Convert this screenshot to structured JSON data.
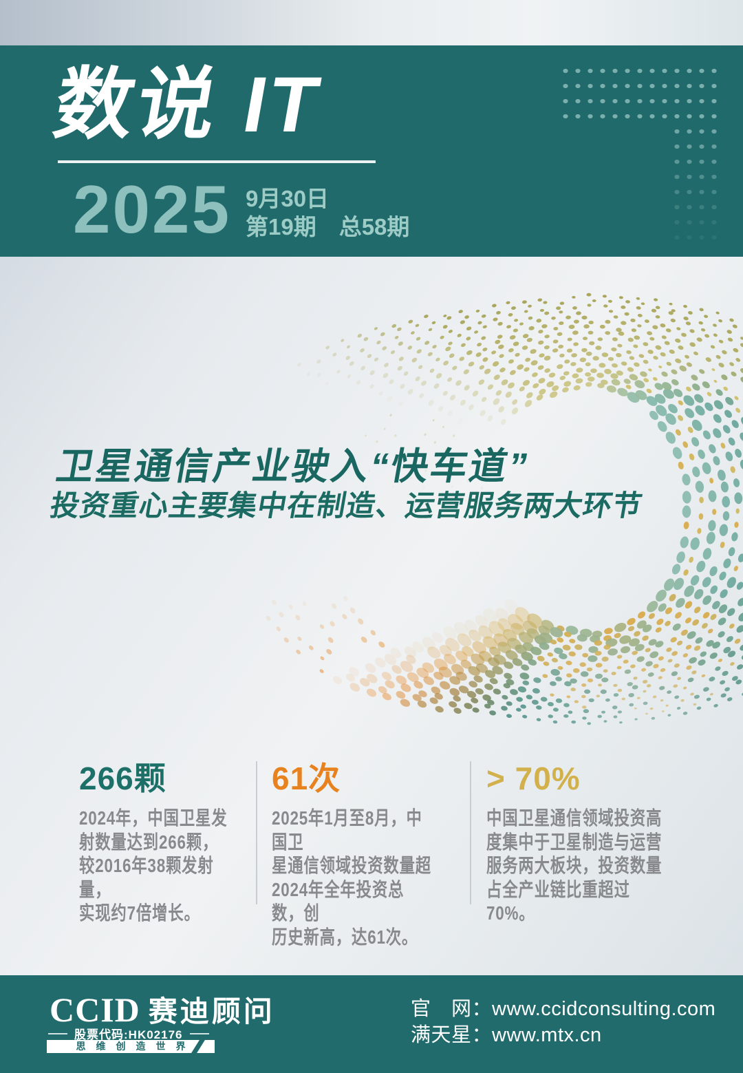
{
  "header": {
    "brand": "数说 IT",
    "year": "2025",
    "date": "9月30日",
    "issue": "第19期　总58期"
  },
  "hero": {
    "headline": "卫星通信产业驶入“快车道”",
    "subheadline": "投资重心主要集中在制造、运营服务两大环节"
  },
  "stats": [
    {
      "value": "266颗",
      "color": "#1d7068",
      "lines": [
        "2024年，中国卫星发",
        "射数量达到266颗，",
        "较2016年38颗发射量，",
        "实现约7倍增长。"
      ]
    },
    {
      "value": "61次",
      "color": "#e8821f",
      "lines": [
        "2025年1月至8月，中国卫",
        "星通信领域投资数量超",
        "2024年全年投资总数，创",
        "历史新高，达61次。"
      ]
    },
    {
      "value": "> 70%",
      "color": "#d2b14c",
      "lines": [
        "中国卫星通信领域投资高",
        "度集中于卫星制造与运营",
        "服务两大板块，投资数量",
        "占全产业链比重超过70%。"
      ]
    }
  ],
  "footer": {
    "logo_latin": "CCID",
    "logo_cn": "赛迪顾问",
    "stock_code": "股票代码:HK02176",
    "tagline": "思维创造世界",
    "url_line_1": "官　网：www.ccidconsulting.com",
    "url_line_2": "满天星：www.mtx.cn"
  },
  "theme": {
    "band_teal": "#216a6c",
    "light_teal_accent": "#8ec1bd",
    "headline_teal": "#196760",
    "body_gray": "#87898c",
    "divider_gray": "#c8cdd1",
    "sphere_teal": "#2d7f79",
    "sphere_olive": "#a5a254",
    "sphere_orange": "#e87d15",
    "sphere_gold": "#d9ab4a"
  }
}
